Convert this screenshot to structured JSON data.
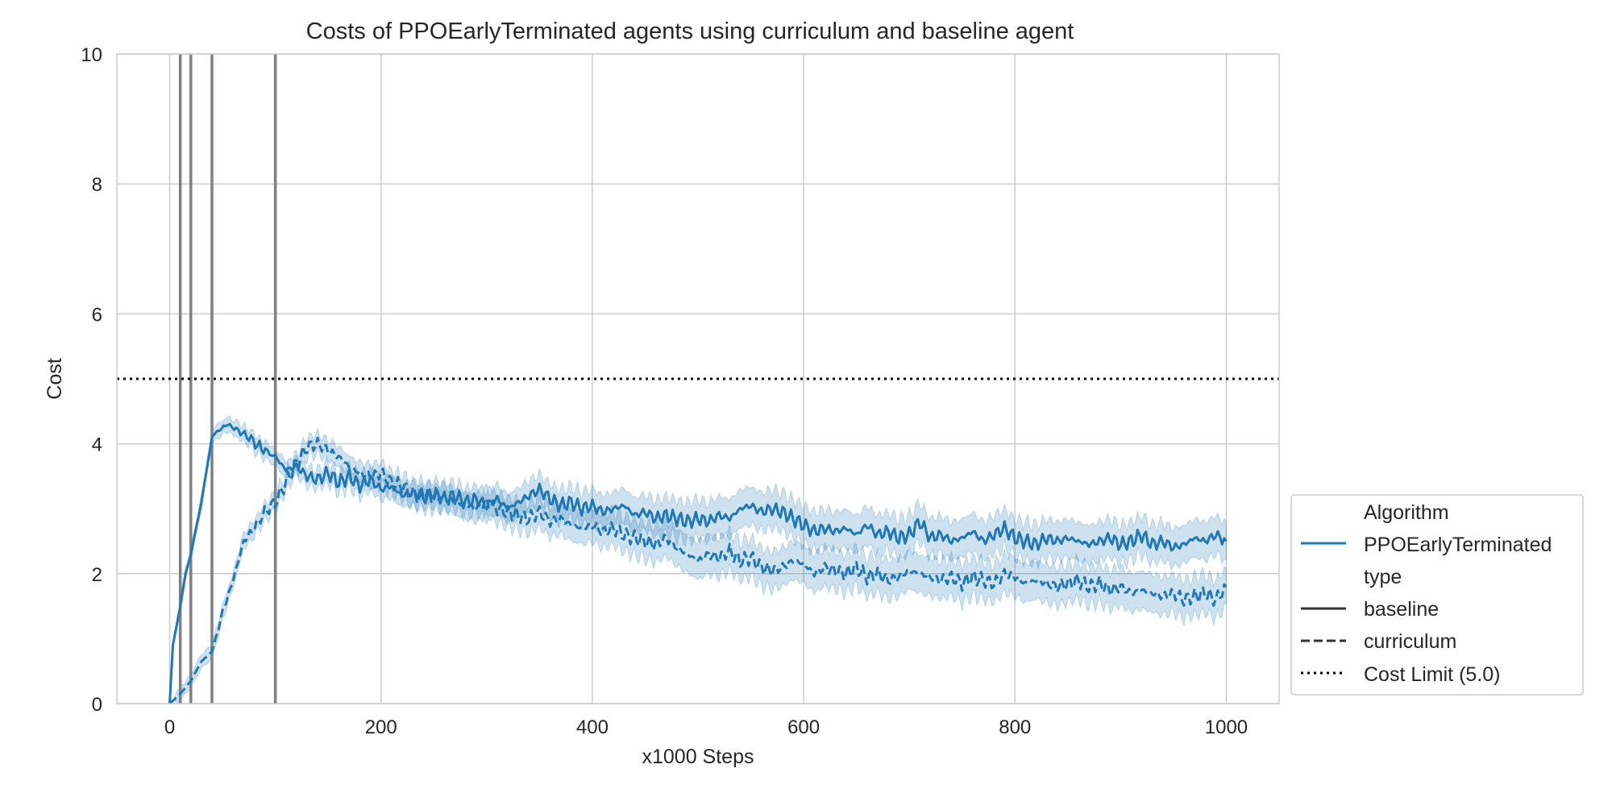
{
  "chart_data": {
    "type": "line",
    "title": "Costs of PPOEarlyTerminated agents using curriculum and baseline agent",
    "xlabel": "x1000 Steps",
    "ylabel": "Cost",
    "xlim": [
      -50,
      1050
    ],
    "ylim": [
      0,
      10
    ],
    "xticks": [
      0,
      200,
      400,
      600,
      800,
      1000
    ],
    "yticks": [
      0,
      2,
      4,
      6,
      8,
      10
    ],
    "grid": true,
    "legend_position": "lower-right outside",
    "colors": {
      "series": "#1f77b4",
      "band": "#1f77b4",
      "vline": "#808080",
      "limit": "#000000",
      "grid": "#cccccc"
    },
    "cost_limit": 5.0,
    "curriculum_switch_steps": [
      10,
      20,
      40,
      100
    ],
    "series": [
      {
        "name": "baseline",
        "algorithm": "PPOEarlyTerminated",
        "style": "solid",
        "points": [
          [
            0,
            0
          ],
          [
            3,
            0.9
          ],
          [
            10,
            1.5
          ],
          [
            15,
            2.0
          ],
          [
            20,
            2.3
          ],
          [
            30,
            3.1
          ],
          [
            40,
            4.1
          ],
          [
            45,
            4.2
          ],
          [
            55,
            4.3
          ],
          [
            65,
            4.2
          ],
          [
            75,
            4.1
          ],
          [
            85,
            3.95
          ],
          [
            100,
            3.8
          ],
          [
            110,
            3.6
          ],
          [
            120,
            3.65
          ],
          [
            130,
            3.5
          ],
          [
            140,
            3.45
          ],
          [
            150,
            3.55
          ],
          [
            160,
            3.4
          ],
          [
            170,
            3.5
          ],
          [
            180,
            3.35
          ],
          [
            190,
            3.45
          ],
          [
            200,
            3.3
          ],
          [
            210,
            3.35
          ],
          [
            220,
            3.2
          ],
          [
            230,
            3.25
          ],
          [
            240,
            3.15
          ],
          [
            250,
            3.25
          ],
          [
            260,
            3.15
          ],
          [
            270,
            3.2
          ],
          [
            280,
            3.1
          ],
          [
            290,
            3.15
          ],
          [
            300,
            3.05
          ],
          [
            310,
            3.15
          ],
          [
            320,
            3.0
          ],
          [
            330,
            3.1
          ],
          [
            340,
            3.2
          ],
          [
            350,
            3.3
          ],
          [
            360,
            3.15
          ],
          [
            370,
            3.05
          ],
          [
            380,
            3.1
          ],
          [
            390,
            3.0
          ],
          [
            400,
            3.05
          ],
          [
            410,
            2.95
          ],
          [
            420,
            3.0
          ],
          [
            430,
            3.05
          ],
          [
            440,
            2.9
          ],
          [
            450,
            2.95
          ],
          [
            460,
            2.85
          ],
          [
            470,
            2.9
          ],
          [
            480,
            2.85
          ],
          [
            490,
            2.8
          ],
          [
            500,
            2.85
          ],
          [
            510,
            2.8
          ],
          [
            520,
            2.9
          ],
          [
            530,
            2.85
          ],
          [
            540,
            3.0
          ],
          [
            550,
            3.05
          ],
          [
            560,
            2.95
          ],
          [
            570,
            3.0
          ],
          [
            580,
            2.95
          ],
          [
            590,
            2.85
          ],
          [
            600,
            2.75
          ],
          [
            610,
            2.65
          ],
          [
            620,
            2.7
          ],
          [
            630,
            2.65
          ],
          [
            640,
            2.7
          ],
          [
            650,
            2.6
          ],
          [
            660,
            2.75
          ],
          [
            670,
            2.6
          ],
          [
            680,
            2.65
          ],
          [
            690,
            2.55
          ],
          [
            700,
            2.6
          ],
          [
            710,
            2.8
          ],
          [
            720,
            2.55
          ],
          [
            730,
            2.6
          ],
          [
            740,
            2.5
          ],
          [
            750,
            2.55
          ],
          [
            760,
            2.65
          ],
          [
            770,
            2.5
          ],
          [
            780,
            2.6
          ],
          [
            790,
            2.7
          ],
          [
            800,
            2.55
          ],
          [
            810,
            2.5
          ],
          [
            820,
            2.45
          ],
          [
            830,
            2.55
          ],
          [
            840,
            2.5
          ],
          [
            850,
            2.55
          ],
          [
            860,
            2.5
          ],
          [
            870,
            2.45
          ],
          [
            880,
            2.5
          ],
          [
            890,
            2.55
          ],
          [
            900,
            2.45
          ],
          [
            910,
            2.5
          ],
          [
            920,
            2.6
          ],
          [
            930,
            2.45
          ],
          [
            940,
            2.5
          ],
          [
            950,
            2.4
          ],
          [
            960,
            2.45
          ],
          [
            970,
            2.55
          ],
          [
            980,
            2.5
          ],
          [
            990,
            2.6
          ],
          [
            1000,
            2.5
          ]
        ]
      },
      {
        "name": "curriculum",
        "algorithm": "PPOEarlyTerminated",
        "style": "dashed",
        "points": [
          [
            0,
            0
          ],
          [
            10,
            0.15
          ],
          [
            20,
            0.35
          ],
          [
            30,
            0.65
          ],
          [
            40,
            0.8
          ],
          [
            50,
            1.4
          ],
          [
            60,
            1.9
          ],
          [
            70,
            2.5
          ],
          [
            80,
            2.7
          ],
          [
            90,
            2.95
          ],
          [
            100,
            3.1
          ],
          [
            110,
            3.4
          ],
          [
            120,
            3.7
          ],
          [
            130,
            3.95
          ],
          [
            140,
            4.0
          ],
          [
            150,
            3.9
          ],
          [
            160,
            3.8
          ],
          [
            170,
            3.65
          ],
          [
            180,
            3.55
          ],
          [
            190,
            3.5
          ],
          [
            200,
            3.55
          ],
          [
            210,
            3.4
          ],
          [
            220,
            3.35
          ],
          [
            230,
            3.2
          ],
          [
            240,
            3.25
          ],
          [
            250,
            3.15
          ],
          [
            260,
            3.2
          ],
          [
            270,
            3.1
          ],
          [
            280,
            3.05
          ],
          [
            290,
            3.0
          ],
          [
            300,
            3.1
          ],
          [
            310,
            3.0
          ],
          [
            320,
            2.95
          ],
          [
            330,
            2.9
          ],
          [
            340,
            2.85
          ],
          [
            350,
            2.95
          ],
          [
            360,
            2.8
          ],
          [
            370,
            2.85
          ],
          [
            380,
            2.75
          ],
          [
            390,
            2.7
          ],
          [
            400,
            2.75
          ],
          [
            410,
            2.65
          ],
          [
            420,
            2.7
          ],
          [
            430,
            2.6
          ],
          [
            440,
            2.55
          ],
          [
            450,
            2.5
          ],
          [
            460,
            2.45
          ],
          [
            470,
            2.55
          ],
          [
            480,
            2.4
          ],
          [
            490,
            2.3
          ],
          [
            500,
            2.2
          ],
          [
            510,
            2.3
          ],
          [
            520,
            2.25
          ],
          [
            530,
            2.35
          ],
          [
            540,
            2.2
          ],
          [
            550,
            2.25
          ],
          [
            560,
            2.1
          ],
          [
            570,
            2.05
          ],
          [
            580,
            2.1
          ],
          [
            590,
            2.2
          ],
          [
            600,
            2.15
          ],
          [
            610,
            2.0
          ],
          [
            620,
            2.1
          ],
          [
            630,
            2.05
          ],
          [
            640,
            2.0
          ],
          [
            650,
            2.1
          ],
          [
            660,
            1.95
          ],
          [
            670,
            2.0
          ],
          [
            680,
            1.9
          ],
          [
            690,
            1.95
          ],
          [
            700,
            2.05
          ],
          [
            710,
            2.0
          ],
          [
            720,
            1.95
          ],
          [
            730,
            1.9
          ],
          [
            740,
            1.95
          ],
          [
            750,
            1.85
          ],
          [
            760,
            1.95
          ],
          [
            770,
            1.9
          ],
          [
            780,
            1.85
          ],
          [
            790,
            2.0
          ],
          [
            800,
            1.95
          ],
          [
            810,
            1.85
          ],
          [
            820,
            1.9
          ],
          [
            830,
            1.85
          ],
          [
            840,
            1.8
          ],
          [
            850,
            1.85
          ],
          [
            860,
            1.9
          ],
          [
            870,
            1.8
          ],
          [
            880,
            1.85
          ],
          [
            890,
            1.75
          ],
          [
            900,
            1.8
          ],
          [
            910,
            1.7
          ],
          [
            920,
            1.75
          ],
          [
            930,
            1.7
          ],
          [
            940,
            1.65
          ],
          [
            950,
            1.7
          ],
          [
            960,
            1.6
          ],
          [
            970,
            1.65
          ],
          [
            980,
            1.7
          ],
          [
            990,
            1.6
          ],
          [
            1000,
            1.8
          ]
        ]
      }
    ],
    "legend": {
      "header_algorithm": "Algorithm",
      "algorithm_label": "PPOEarlyTerminated",
      "header_type": "type",
      "baseline_label": "baseline",
      "curriculum_label": "curriculum",
      "limit_label": "Cost Limit (5.0)"
    }
  }
}
